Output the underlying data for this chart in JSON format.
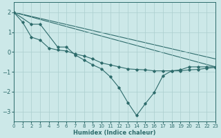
{
  "xlabel": "Humidex (Indice chaleur)",
  "xlim": [
    0,
    23
  ],
  "ylim": [
    -3.5,
    2.5
  ],
  "yticks": [
    -3,
    -2,
    -1,
    0,
    1,
    2
  ],
  "xticks": [
    0,
    1,
    2,
    3,
    4,
    5,
    6,
    7,
    8,
    9,
    10,
    11,
    12,
    13,
    14,
    15,
    16,
    17,
    18,
    19,
    20,
    21,
    22,
    23
  ],
  "bg_color": "#cce8e8",
  "line_color": "#2d6b6b",
  "grid_color": "#aacece",
  "line1_x": [
    0,
    1,
    2,
    3,
    4,
    5,
    6,
    7,
    8,
    9,
    10,
    11,
    12,
    13,
    14,
    15,
    16,
    17,
    18,
    19,
    20,
    21,
    22,
    23
  ],
  "line1_y": [
    2.0,
    1.5,
    0.75,
    0.6,
    0.2,
    0.1,
    0.05,
    -0.1,
    -0.2,
    -0.35,
    -0.55,
    -0.65,
    -0.75,
    -0.85,
    -0.88,
    -0.9,
    -0.95,
    -0.95,
    -0.95,
    -0.95,
    -0.9,
    -0.88,
    -0.82,
    -0.78
  ],
  "line2_x": [
    0,
    2,
    3,
    5,
    6,
    7,
    8,
    9,
    10,
    11,
    12,
    13,
    14,
    15,
    16,
    17,
    18,
    19,
    20,
    21,
    22,
    23
  ],
  "line2_y": [
    2.0,
    1.4,
    1.4,
    0.25,
    0.25,
    -0.15,
    -0.4,
    -0.65,
    -0.85,
    -1.25,
    -1.8,
    -2.55,
    -3.2,
    -2.6,
    -2.05,
    -1.2,
    -0.95,
    -0.9,
    -0.75,
    -0.75,
    -0.75,
    -0.75
  ],
  "line3_x": [
    0,
    23
  ],
  "line3_y": [
    2.0,
    -0.75
  ],
  "line4_x": [
    0,
    23
  ],
  "line4_y": [
    2.0,
    -0.35
  ]
}
